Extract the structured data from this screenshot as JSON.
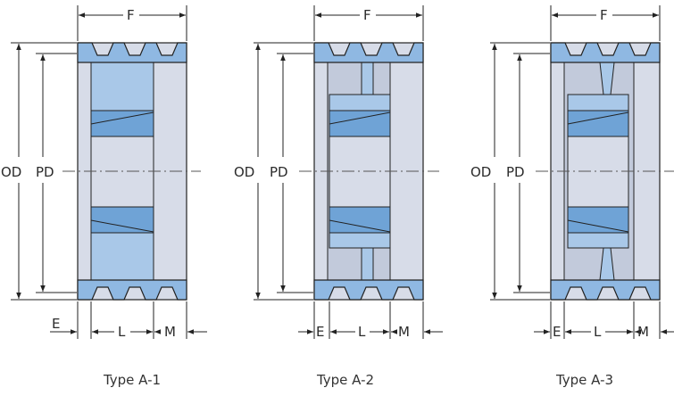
{
  "colors": {
    "body": "#d7dce8",
    "hub": "#a9c8e8",
    "hub_dark": "#6fa3d6",
    "groove_band": "#8fb8e2",
    "line": "#222222",
    "center": "#555555"
  },
  "labels": {
    "f": "F",
    "od": "OD",
    "pd": "PD",
    "e": "E",
    "l": "L",
    "m": "M"
  },
  "types": [
    {
      "caption": "Type A-1"
    },
    {
      "caption": "Type A-2"
    },
    {
      "caption": "Type A-3"
    }
  ]
}
